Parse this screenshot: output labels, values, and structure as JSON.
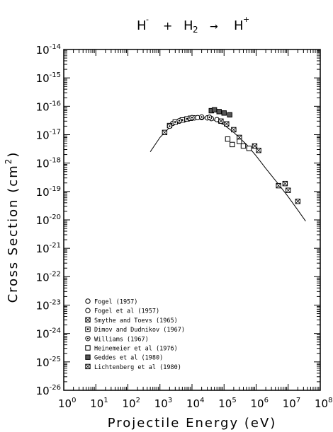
{
  "chart_data": {
    "type": "scatter",
    "title": {
      "a": "H",
      "a_sup": "-",
      "plus": "+",
      "b": "H",
      "b_sub": "2",
      "arrow": "→",
      "c": "H",
      "c_sup": "+"
    },
    "xlabel": "Projectile Energy (eV)",
    "ylabel": "Cross Section (cm²)",
    "ylabel_parts": {
      "main": "Cross Section (cm",
      "sup": "2",
      "close": ")"
    },
    "x_scale": "log",
    "y_scale": "log",
    "xlim": [
      1,
      100000000
    ],
    "ylim": [
      1e-26,
      1e-14
    ],
    "x_ticks": [
      {
        "base": "10",
        "exp": "0"
      },
      {
        "base": "10",
        "exp": "1"
      },
      {
        "base": "10",
        "exp": "2"
      },
      {
        "base": "10",
        "exp": "3"
      },
      {
        "base": "10",
        "exp": "4"
      },
      {
        "base": "10",
        "exp": "5"
      },
      {
        "base": "10",
        "exp": "6"
      },
      {
        "base": "10",
        "exp": "7"
      },
      {
        "base": "10",
        "exp": "8"
      }
    ],
    "y_ticks": [
      {
        "base": "10",
        "exp": "-14"
      },
      {
        "base": "10",
        "exp": "-15"
      },
      {
        "base": "10",
        "exp": "-16"
      },
      {
        "base": "10",
        "exp": "-17"
      },
      {
        "base": "10",
        "exp": "-18"
      },
      {
        "base": "10",
        "exp": "-19"
      },
      {
        "base": "10",
        "exp": "-20"
      },
      {
        "base": "10",
        "exp": "-21"
      },
      {
        "base": "10",
        "exp": "-22"
      },
      {
        "base": "10",
        "exp": "-23"
      },
      {
        "base": "10",
        "exp": "-24"
      },
      {
        "base": "10",
        "exp": "-25"
      },
      {
        "base": "10",
        "exp": "-26"
      }
    ],
    "grid": false,
    "legend_position": "bottom-left",
    "fit_curve": {
      "points": [
        [
          500,
          2.5e-18
        ],
        [
          1000,
          8e-18
        ],
        [
          2000,
          1.8e-17
        ],
        [
          5000,
          3.3e-17
        ],
        [
          10000,
          4e-17
        ],
        [
          20000,
          4.1e-17
        ],
        [
          50000,
          3.2e-17
        ],
        [
          100000,
          2.2e-17
        ],
        [
          200000,
          1.2e-17
        ],
        [
          500000,
          4.5e-18
        ],
        [
          1000000,
          1.8e-18
        ],
        [
          2000000,
          6.5e-19
        ],
        [
          5000000,
          1.8e-19
        ],
        [
          10000000,
          6.5e-20
        ],
        [
          20000000,
          2.2e-20
        ],
        [
          35000000,
          9e-21
        ]
      ]
    },
    "series": [
      {
        "name": "Fogel (1957)",
        "marker": "circle-open",
        "points": [
          [
            2500,
            2.5e-17
          ],
          [
            4000,
            3e-17
          ],
          [
            6000,
            3.4e-17
          ],
          [
            8000,
            3.7e-17
          ],
          [
            12000,
            3.9e-17
          ]
        ]
      },
      {
        "name": "Fogel et al (1957)",
        "marker": "circle-open",
        "points": [
          [
            15000,
            4e-17
          ],
          [
            20000,
            4e-17
          ],
          [
            30000,
            3.9e-17
          ],
          [
            40000,
            3.7e-17
          ],
          [
            60000,
            3.4e-17
          ]
        ]
      },
      {
        "name": "Smythe and Toevs (1965)",
        "marker": "square-x",
        "points": [
          [
            80000,
            3e-17
          ],
          [
            120000,
            2.4e-17
          ],
          [
            200000,
            1.5e-17
          ],
          [
            300000,
            8e-18
          ]
        ]
      },
      {
        "name": "Dimov and Dudnikov (1967)",
        "marker": "square-dot",
        "points": [
          [
            2000,
            2.1e-17
          ],
          [
            3000,
            2.8e-17
          ],
          [
            5000,
            3.3e-17
          ],
          [
            7000,
            3.6e-17
          ],
          [
            9000,
            3.8e-17
          ]
        ]
      },
      {
        "name": "Williams (1967)",
        "marker": "circle-dot",
        "points": [
          [
            2000,
            2e-17
          ],
          [
            4000,
            3.1e-17
          ],
          [
            10000,
            4e-17
          ],
          [
            20000,
            4.2e-17
          ],
          [
            35000,
            4.1e-17
          ]
        ]
      },
      {
        "name": "Heinemeier et al (1976)",
        "marker": "square-open",
        "points": [
          [
            130000,
            7e-18
          ],
          [
            180000,
            4.5e-18
          ],
          [
            300000,
            5.8e-18
          ],
          [
            400000,
            4e-18
          ],
          [
            600000,
            3.3e-18
          ]
        ]
      },
      {
        "name": "Geddes et al (1980)",
        "marker": "square-filled",
        "points": [
          [
            40000,
            7e-17
          ],
          [
            50000,
            7.5e-17
          ],
          [
            70000,
            6.5e-17
          ],
          [
            100000,
            5.8e-17
          ],
          [
            150000,
            5e-17
          ]
        ]
      },
      {
        "name": "Lichtenberg et al (1980)",
        "marker": "square-x",
        "points": [
          [
            1400,
            1.2e-17
          ],
          [
            900000,
            4e-18
          ],
          [
            1200000,
            2.8e-18
          ],
          [
            5000000,
            1.6e-19
          ],
          [
            8000000,
            1.9e-19
          ],
          [
            10000000,
            1.1e-19
          ],
          [
            20000000,
            4.5e-20
          ]
        ]
      }
    ]
  }
}
